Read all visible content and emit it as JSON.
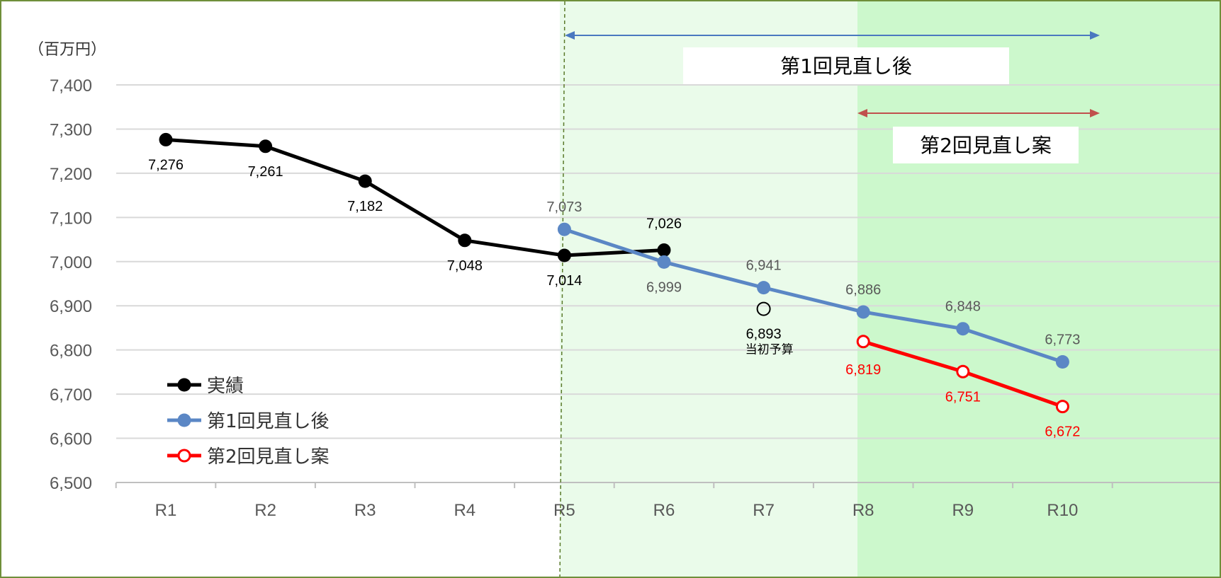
{
  "chart_data": {
    "type": "line",
    "unit_label": "（百万円）",
    "categories": [
      "R1",
      "R2",
      "R3",
      "R4",
      "R5",
      "R6",
      "R7",
      "R8",
      "R9",
      "R10"
    ],
    "ylim": [
      6500,
      7400
    ],
    "yticks": [
      "6,500",
      "6,600",
      "6,700",
      "6,800",
      "6,900",
      "7,000",
      "7,100",
      "7,200",
      "7,300",
      "7,400"
    ],
    "grid": true,
    "series": [
      {
        "name": "実績",
        "color": "#000000",
        "marker": "filled-circle",
        "values": [
          7276,
          7261,
          7182,
          7048,
          7014,
          7026,
          null,
          null,
          null,
          null
        ],
        "labels": [
          "7,276",
          "7,261",
          "7,182",
          "7,048",
          "7,014",
          "7,026",
          "",
          "",
          "",
          ""
        ]
      },
      {
        "name": "第1回見直し後",
        "color": "#5b87c5",
        "marker": "filled-circle",
        "values": [
          null,
          null,
          null,
          null,
          7073,
          6999,
          6941,
          6886,
          6848,
          6773
        ],
        "labels": [
          "",
          "",
          "",
          "",
          "7,073",
          "6,999",
          "6,941",
          "6,886",
          "6,848",
          "6,773"
        ]
      },
      {
        "name": "第2回見直し案",
        "color": "#ff0000",
        "marker": "open-circle",
        "values": [
          null,
          null,
          null,
          null,
          null,
          null,
          null,
          6819,
          6751,
          6672
        ],
        "labels": [
          "",
          "",
          "",
          "",
          "",
          "",
          "",
          "6,819",
          "6,751",
          "6,672"
        ]
      }
    ],
    "annotations": [
      {
        "category": "R7",
        "value": 6893,
        "label": "6,893",
        "note": "当初予算",
        "marker": "open-circle"
      }
    ],
    "banners": [
      {
        "text": "第1回見直し後",
        "from": "R5",
        "to": "R10",
        "arrow_color": "#4a78c0"
      },
      {
        "text": "第2回見直し案",
        "from": "R8",
        "to": "R10",
        "arrow_color": "#c0504d"
      }
    ],
    "legend_position": "bottom-left"
  }
}
